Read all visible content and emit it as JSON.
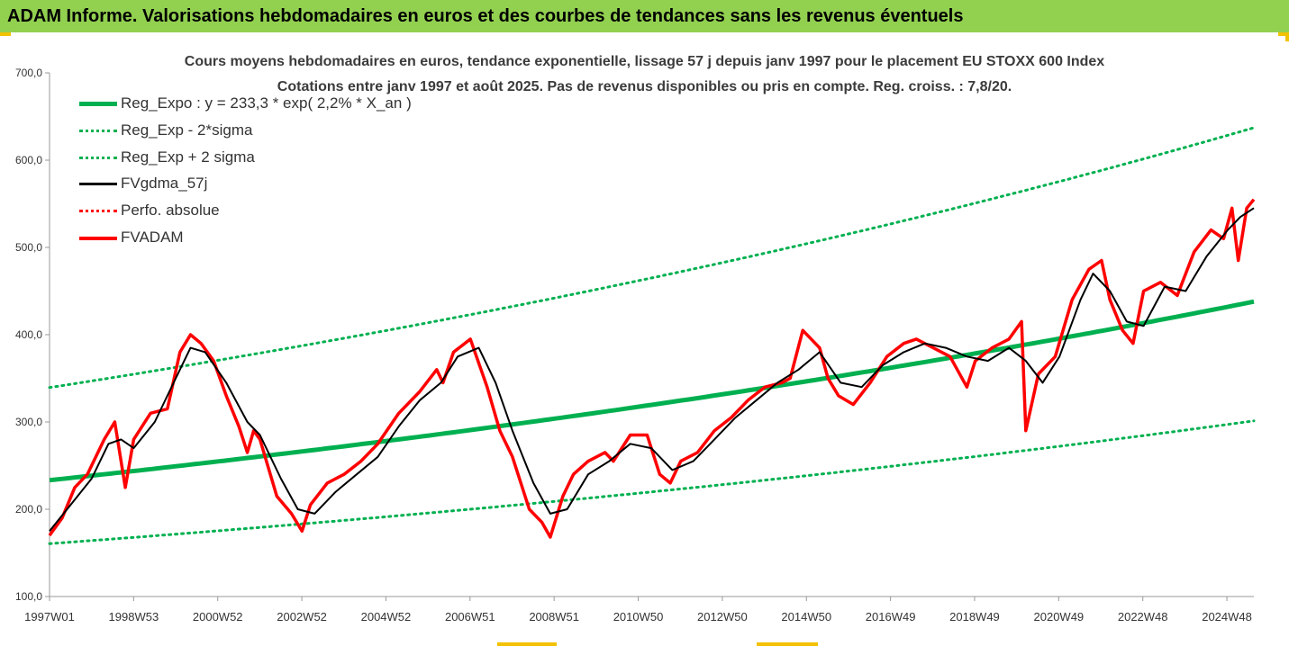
{
  "header": {
    "title": "ADAM Informe. Valorisations hebdomadaires en euros et des courbes de tendances sans les revenus éventuels"
  },
  "colors": {
    "header_bg": "#92d050",
    "trend_green": "#00b050",
    "dotted_green": "#00b050",
    "smoothed_black": "#000000",
    "perf_red": "#ff0000",
    "price_red": "#ff0000",
    "accent_yellow": "#f2c200"
  },
  "chart_data": {
    "type": "line",
    "title_line1": "Cours moyens hebdomadaires en euros, tendance exponentielle, lissage 57 j depuis janv 1997 pour le placement EU STOXX 600 Index",
    "title_line2": "Cotations entre janv 1997 et août 2025. Pas de revenus disponibles ou pris en compte. Reg. croiss. : 7,8/20.",
    "ylim": [
      100,
      700
    ],
    "y_ticks": [
      "100,0",
      "200,0",
      "300,0",
      "400,0",
      "500,0",
      "600,0",
      "700,0"
    ],
    "x_tick_labels": [
      "1997W01",
      "1998W53",
      "2000W52",
      "2002W52",
      "2004W52",
      "2006W51",
      "2008W51",
      "2010W50",
      "2012W50",
      "2014W50",
      "2016W49",
      "2018W49",
      "2020W49",
      "2022W48",
      "2024W48"
    ],
    "legend": [
      {
        "label": "Reg_Expo : y = 233,3 * exp( 2,2% *  X_an )",
        "style": "solid-thick",
        "color": "#00b050"
      },
      {
        "label": "Reg_Exp - 2*sigma",
        "style": "dotted",
        "color": "#00b050"
      },
      {
        "label": "Reg_Exp + 2 sigma",
        "style": "dotted",
        "color": "#00b050"
      },
      {
        "label": "FVgdma_57j",
        "style": "solid",
        "color": "#000000"
      },
      {
        "label": "Perfo. absolue",
        "style": "dotted",
        "color": "#ff0000"
      },
      {
        "label": "FVADAM",
        "style": "solid-thick",
        "color": "#ff0000"
      }
    ],
    "regression": {
      "a": 233.3,
      "growth_rate": 0.022,
      "lower_band_factor": 0.688,
      "upper_band_factor": 1.455
    },
    "series": [
      {
        "name": "FVADAM",
        "x": [
          1997.0,
          1997.3,
          1997.6,
          1997.9,
          1998.3,
          1998.55,
          1998.7,
          1998.8,
          1999.0,
          1999.4,
          1999.8,
          2000.1,
          2000.35,
          2000.6,
          2000.9,
          2001.2,
          2001.5,
          2001.7,
          2001.85,
          2002.0,
          2002.4,
          2002.75,
          2003.0,
          2003.2,
          2003.6,
          2004.0,
          2004.4,
          2004.8,
          2005.3,
          2005.8,
          2006.2,
          2006.35,
          2006.6,
          2007.0,
          2007.4,
          2007.7,
          2008.0,
          2008.4,
          2008.7,
          2008.9,
          2009.2,
          2009.45,
          2009.8,
          2010.2,
          2010.4,
          2010.8,
          2011.2,
          2011.5,
          2011.75,
          2012.0,
          2012.4,
          2012.8,
          2013.2,
          2013.6,
          2014.0,
          2014.4,
          2014.6,
          2014.9,
          2015.3,
          2015.5,
          2015.75,
          2016.1,
          2016.5,
          2016.9,
          2017.3,
          2017.6,
          2018.0,
          2018.4,
          2018.8,
          2019.0,
          2019.4,
          2019.8,
          2020.1,
          2020.2,
          2020.5,
          2020.9,
          2021.3,
          2021.7,
          2022.0,
          2022.2,
          2022.5,
          2022.75,
          2023.0,
          2023.4,
          2023.8,
          2024.2,
          2024.6,
          2024.9,
          2025.1,
          2025.25,
          2025.45,
          2025.62
        ],
        "values": [
          170,
          190,
          225,
          240,
          280,
          300,
          255,
          225,
          280,
          310,
          315,
          380,
          400,
          390,
          370,
          330,
          295,
          265,
          290,
          280,
          215,
          195,
          175,
          205,
          230,
          240,
          255,
          275,
          310,
          335,
          360,
          345,
          380,
          395,
          340,
          290,
          260,
          200,
          185,
          168,
          215,
          240,
          255,
          265,
          255,
          285,
          285,
          240,
          230,
          255,
          265,
          290,
          305,
          325,
          340,
          345,
          350,
          405,
          385,
          350,
          330,
          320,
          345,
          375,
          390,
          395,
          385,
          375,
          340,
          370,
          385,
          395,
          415,
          290,
          355,
          375,
          440,
          475,
          485,
          440,
          405,
          390,
          450,
          460,
          445,
          495,
          520,
          510,
          545,
          485,
          545,
          555
        ]
      },
      {
        "name": "FVgdma_57j",
        "x": [
          1997.0,
          1997.5,
          1998.0,
          1998.4,
          1998.7,
          1999.0,
          1999.5,
          2000.0,
          2000.35,
          2000.7,
          2001.2,
          2001.7,
          2002.0,
          2002.5,
          2002.9,
          2003.3,
          2003.8,
          2004.3,
          2004.8,
          2005.3,
          2005.8,
          2006.3,
          2006.7,
          2007.2,
          2007.6,
          2008.0,
          2008.5,
          2008.9,
          2009.3,
          2009.8,
          2010.3,
          2010.8,
          2011.3,
          2011.8,
          2012.3,
          2012.8,
          2013.3,
          2013.8,
          2014.3,
          2014.8,
          2015.3,
          2015.8,
          2016.3,
          2016.8,
          2017.3,
          2017.8,
          2018.3,
          2018.8,
          2019.3,
          2019.8,
          2020.2,
          2020.6,
          2021.0,
          2021.5,
          2021.8,
          2022.2,
          2022.6,
          2023.0,
          2023.5,
          2024.0,
          2024.5,
          2025.0,
          2025.3,
          2025.62
        ],
        "values": [
          175,
          205,
          235,
          275,
          280,
          270,
          300,
          350,
          385,
          380,
          345,
          300,
          285,
          235,
          200,
          195,
          220,
          240,
          260,
          295,
          325,
          345,
          375,
          385,
          345,
          290,
          230,
          195,
          200,
          240,
          255,
          275,
          270,
          245,
          255,
          280,
          305,
          325,
          345,
          360,
          380,
          345,
          340,
          365,
          380,
          390,
          385,
          375,
          370,
          385,
          370,
          345,
          375,
          440,
          470,
          450,
          415,
          410,
          455,
          450,
          490,
          520,
          535,
          545
        ]
      }
    ]
  }
}
